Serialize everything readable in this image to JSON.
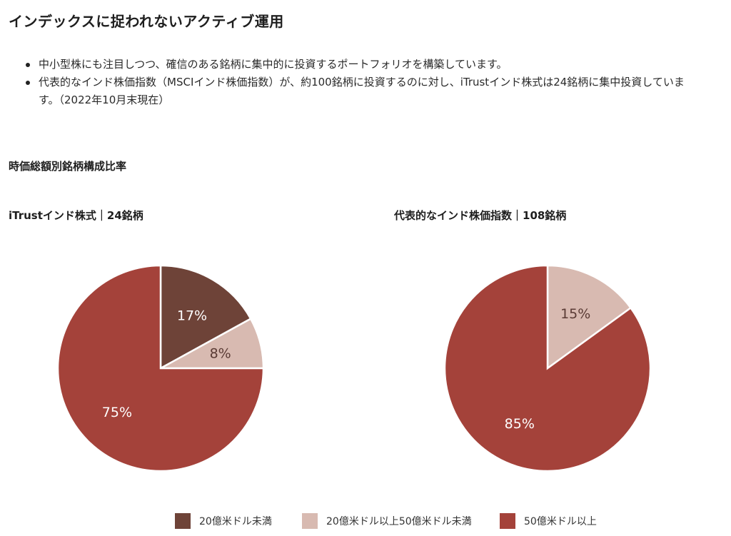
{
  "page": {
    "title": "インデックスに捉われないアクティブ運用",
    "bullets": [
      "中小型株にも注目しつつ、確信のある銘柄に集中的に投資するポートフォリオを構築しています。",
      "代表的なインド株価指数（MSCIインド株価指数）が、約100銘柄に投資するのに対し、iTrustインド株式は24銘柄に集中投資しています。（2022年10月末現在）"
    ],
    "section_title": "時価総額別銘柄構成比率"
  },
  "colors": {
    "small": "#6e4338",
    "mid": "#d8bab1",
    "large": "#a4423a",
    "label_dark": "#ffffff",
    "label_light": "#5a3b35"
  },
  "chart_data": [
    {
      "type": "pie",
      "title": "iTrustインド株式｜24銘柄",
      "slices": [
        {
          "label": "20億米ドル未満",
          "value": 17,
          "display": "17%"
        },
        {
          "label": "20億米ドル以上50億米ドル未満",
          "value": 8,
          "display": "8%"
        },
        {
          "label": "50億米ドル以上",
          "value": 75,
          "display": "75%"
        }
      ]
    },
    {
      "type": "pie",
      "title": "代表的なインド株価指数｜108銘柄",
      "slices": [
        {
          "label": "20億米ドル以上50億米ドル未満",
          "value": 15,
          "display": "15%"
        },
        {
          "label": "50億米ドル以上",
          "value": 85,
          "display": "85%"
        }
      ]
    }
  ],
  "legend": [
    {
      "label": "20億米ドル未満",
      "color": "#6e4338"
    },
    {
      "label": "20億米ドル以上50億米ドル未満",
      "color": "#d8bab1"
    },
    {
      "label": "50億米ドル以上",
      "color": "#a4423a"
    }
  ]
}
